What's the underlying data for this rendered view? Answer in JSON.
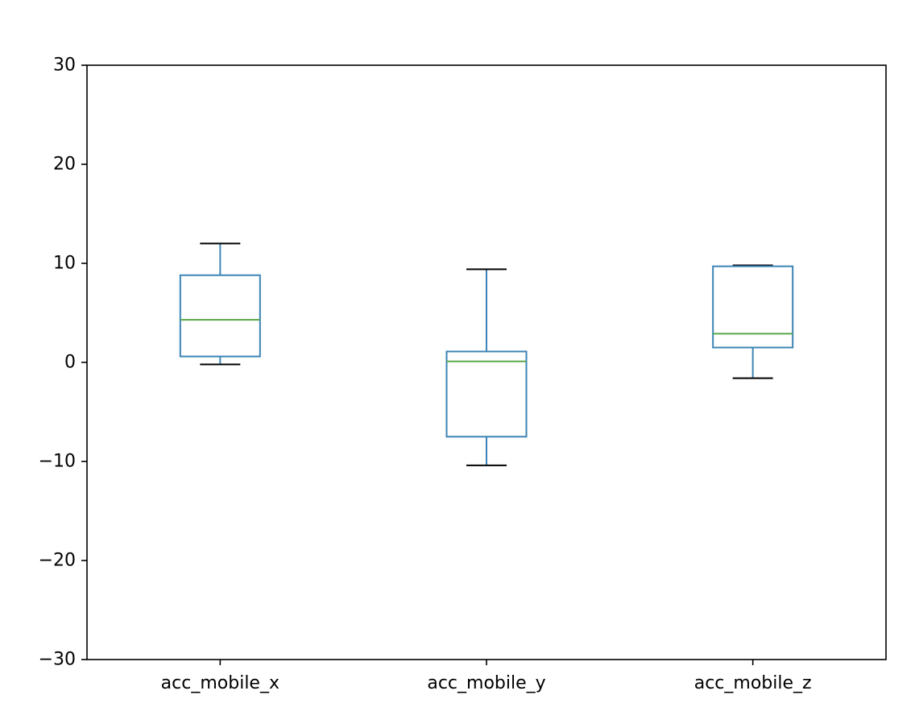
{
  "chart_data": {
    "type": "box",
    "title": "",
    "xlabel": "",
    "ylabel": "",
    "ylim": [
      -30,
      30
    ],
    "yticks": [
      -30,
      -20,
      -10,
      0,
      10,
      20,
      30
    ],
    "ytick_labels": [
      "−30",
      "−20",
      "−10",
      "0",
      "10",
      "20",
      "30"
    ],
    "categories": [
      "acc_mobile_x",
      "acc_mobile_y",
      "acc_mobile_z"
    ],
    "boxes": [
      {
        "label": "acc_mobile_x",
        "whisker_low": -0.2,
        "q1": 0.6,
        "median": 4.3,
        "q3": 8.8,
        "whisker_high": 12.0
      },
      {
        "label": "acc_mobile_y",
        "whisker_low": -10.4,
        "q1": -7.5,
        "median": 0.1,
        "q3": 1.1,
        "whisker_high": 9.4
      },
      {
        "label": "acc_mobile_z",
        "whisker_low": -1.6,
        "q1": 1.5,
        "median": 2.9,
        "q3": 9.7,
        "whisker_high": 9.8
      }
    ],
    "grid": false,
    "legend": "none",
    "colors": {
      "box": "#3d85b6",
      "median": "#5aa84a",
      "cap": "#000000",
      "axis": "#000000"
    }
  }
}
